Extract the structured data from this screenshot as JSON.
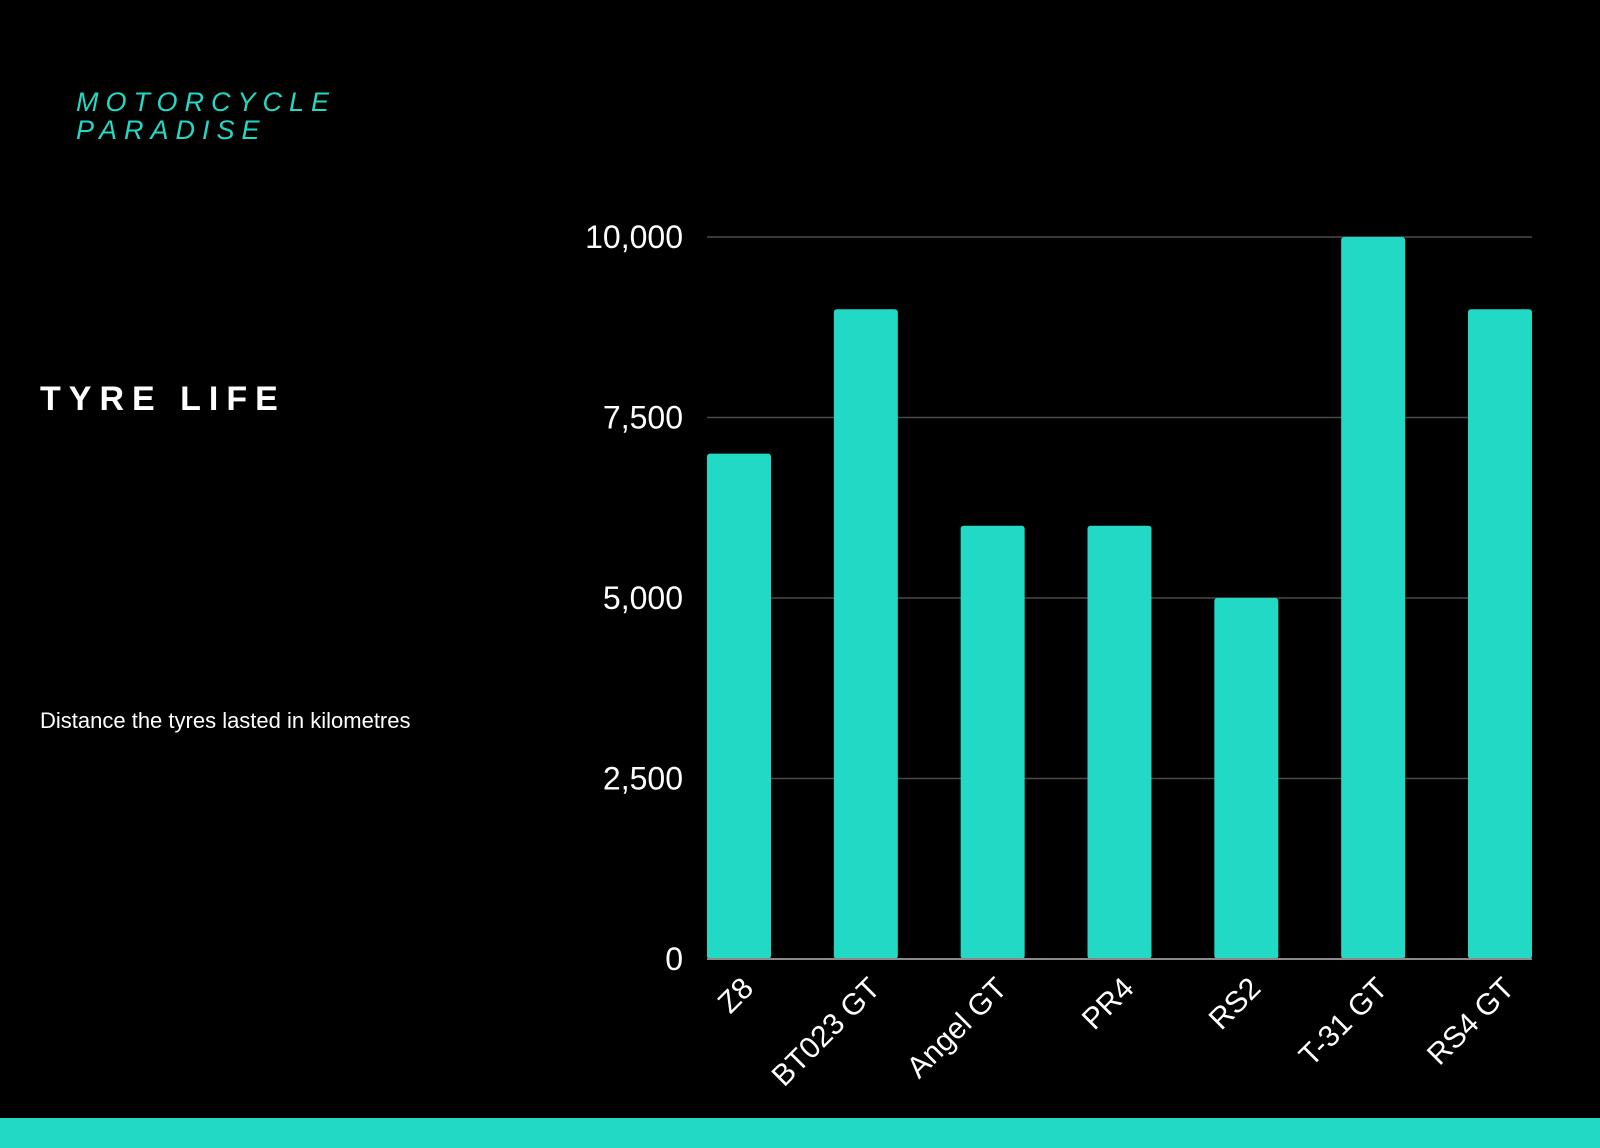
{
  "brand": {
    "name": "MOTORCYCLE PARADISE"
  },
  "title": "TYRE LIFE",
  "subtitle": "Distance the tyres lasted in kilometres",
  "colors": {
    "background": "#000000",
    "accent": "#22d9c5",
    "text": "#ffffff",
    "grid": "#4a4a4a"
  },
  "chart_data": {
    "type": "bar",
    "categories": [
      "Z8",
      "BT023 GT",
      "Angel GT",
      "PR4",
      "RS2",
      "T-31 GT",
      "RS4 GT"
    ],
    "values": [
      7000,
      9000,
      6000,
      6000,
      5000,
      10000,
      9000
    ],
    "ylim": [
      0,
      10000
    ],
    "yticks": [
      0,
      2500,
      5000,
      7500,
      10000
    ],
    "ytick_labels": [
      "0",
      "2,500",
      "5,000",
      "7,500",
      "10,000"
    ],
    "grid": true,
    "legend": "none"
  }
}
